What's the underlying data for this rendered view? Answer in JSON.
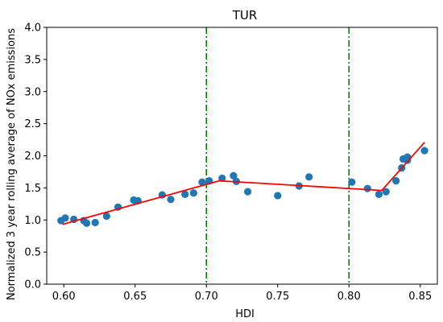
{
  "chart_data": {
    "type": "scatter",
    "title": "TUR",
    "xlabel": "HDI",
    "ylabel": "Normalized 3 year rolling average of NOx emissions",
    "xlim": [
      0.588,
      0.862
    ],
    "ylim": [
      0.0,
      4.0
    ],
    "xticks": [
      0.6,
      0.65,
      0.7,
      0.75,
      0.8,
      0.85
    ],
    "xtick_labels": [
      "0.60",
      "0.65",
      "0.70",
      "0.75",
      "0.80",
      "0.85"
    ],
    "yticks": [
      0.0,
      0.5,
      1.0,
      1.5,
      2.0,
      2.5,
      3.0,
      3.5,
      4.0
    ],
    "ytick_labels": [
      "0.0",
      "0.5",
      "1.0",
      "1.5",
      "2.0",
      "2.5",
      "3.0",
      "3.5",
      "4.0"
    ],
    "grid": false,
    "colors": {
      "points": "#1f77b4",
      "fit_line": "#ff0000",
      "threshold_lines": "#008000"
    },
    "points": [
      {
        "x": 0.598,
        "y": 0.99
      },
      {
        "x": 0.601,
        "y": 1.03
      },
      {
        "x": 0.607,
        "y": 1.01
      },
      {
        "x": 0.614,
        "y": 0.99
      },
      {
        "x": 0.616,
        "y": 0.95
      },
      {
        "x": 0.622,
        "y": 0.96
      },
      {
        "x": 0.63,
        "y": 1.06
      },
      {
        "x": 0.638,
        "y": 1.2
      },
      {
        "x": 0.649,
        "y": 1.31
      },
      {
        "x": 0.652,
        "y": 1.3
      },
      {
        "x": 0.669,
        "y": 1.39
      },
      {
        "x": 0.675,
        "y": 1.32
      },
      {
        "x": 0.685,
        "y": 1.4
      },
      {
        "x": 0.691,
        "y": 1.42
      },
      {
        "x": 0.697,
        "y": 1.59
      },
      {
        "x": 0.702,
        "y": 1.61
      },
      {
        "x": 0.711,
        "y": 1.65
      },
      {
        "x": 0.719,
        "y": 1.69
      },
      {
        "x": 0.721,
        "y": 1.6
      },
      {
        "x": 0.729,
        "y": 1.44
      },
      {
        "x": 0.75,
        "y": 1.38
      },
      {
        "x": 0.765,
        "y": 1.53
      },
      {
        "x": 0.772,
        "y": 1.67
      },
      {
        "x": 0.802,
        "y": 1.59
      },
      {
        "x": 0.813,
        "y": 1.49
      },
      {
        "x": 0.821,
        "y": 1.4
      },
      {
        "x": 0.826,
        "y": 1.44
      },
      {
        "x": 0.833,
        "y": 1.61
      },
      {
        "x": 0.837,
        "y": 1.81
      },
      {
        "x": 0.838,
        "y": 1.95
      },
      {
        "x": 0.841,
        "y": 1.98
      },
      {
        "x": 0.841,
        "y": 1.93
      },
      {
        "x": 0.853,
        "y": 2.08
      }
    ],
    "fit_line": [
      {
        "x": 0.599,
        "y": 0.93
      },
      {
        "x": 0.709,
        "y": 1.61
      },
      {
        "x": 0.823,
        "y": 1.46
      },
      {
        "x": 0.853,
        "y": 2.21
      }
    ],
    "threshold_lines_x": [
      0.7,
      0.8
    ]
  }
}
